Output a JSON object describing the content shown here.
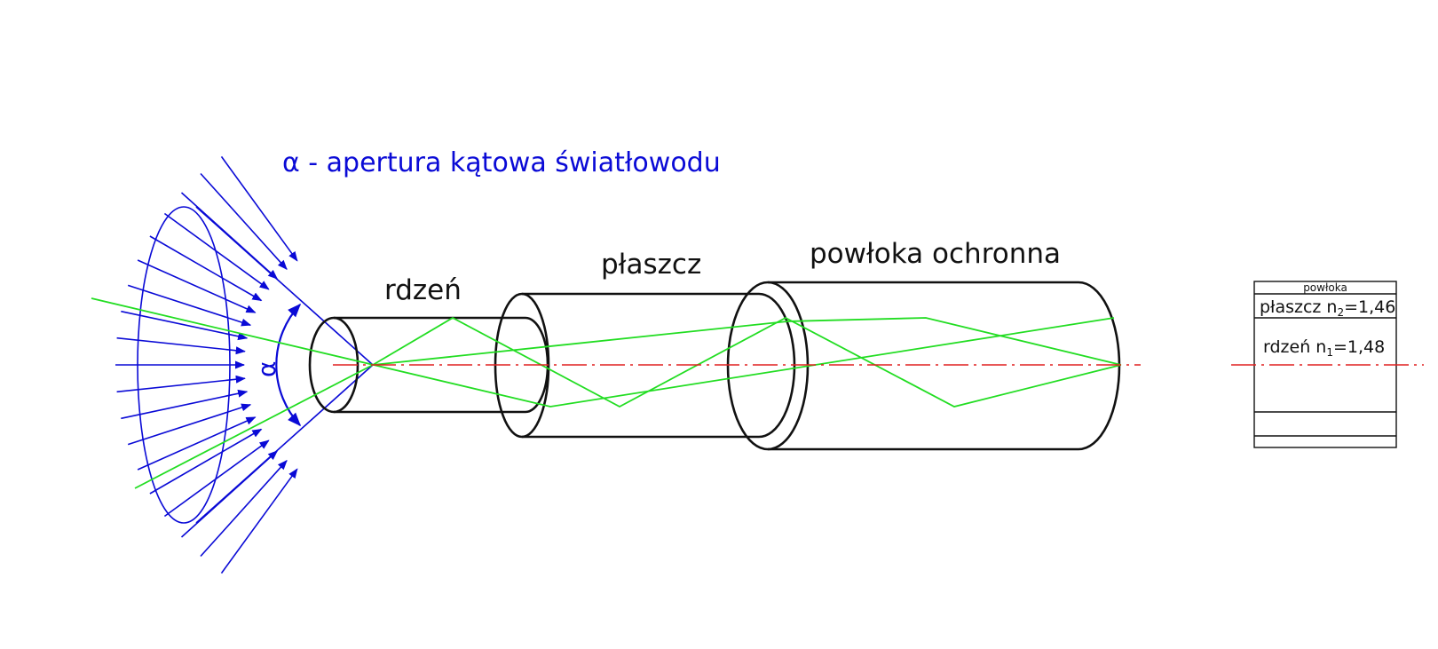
{
  "title": "α - apertura kątowa światłowodu",
  "angle_symbol": "α",
  "labels": {
    "core": "rdzeń",
    "cladding": "płaszcz",
    "coating": "powłoka ochronna"
  },
  "inset": {
    "coating_label": "powłoka",
    "cladding_label": "płaszcz n",
    "cladding_sub": "2",
    "cladding_value": "=1,46",
    "core_label": "rdzeń n",
    "core_sub": "1",
    "core_value": "=1,48"
  },
  "colors": {
    "title": "#0a0ad6",
    "rays": "#0a0ad6",
    "light_path": "#22dd22",
    "axis": "#e02020",
    "outline": "#111111"
  }
}
